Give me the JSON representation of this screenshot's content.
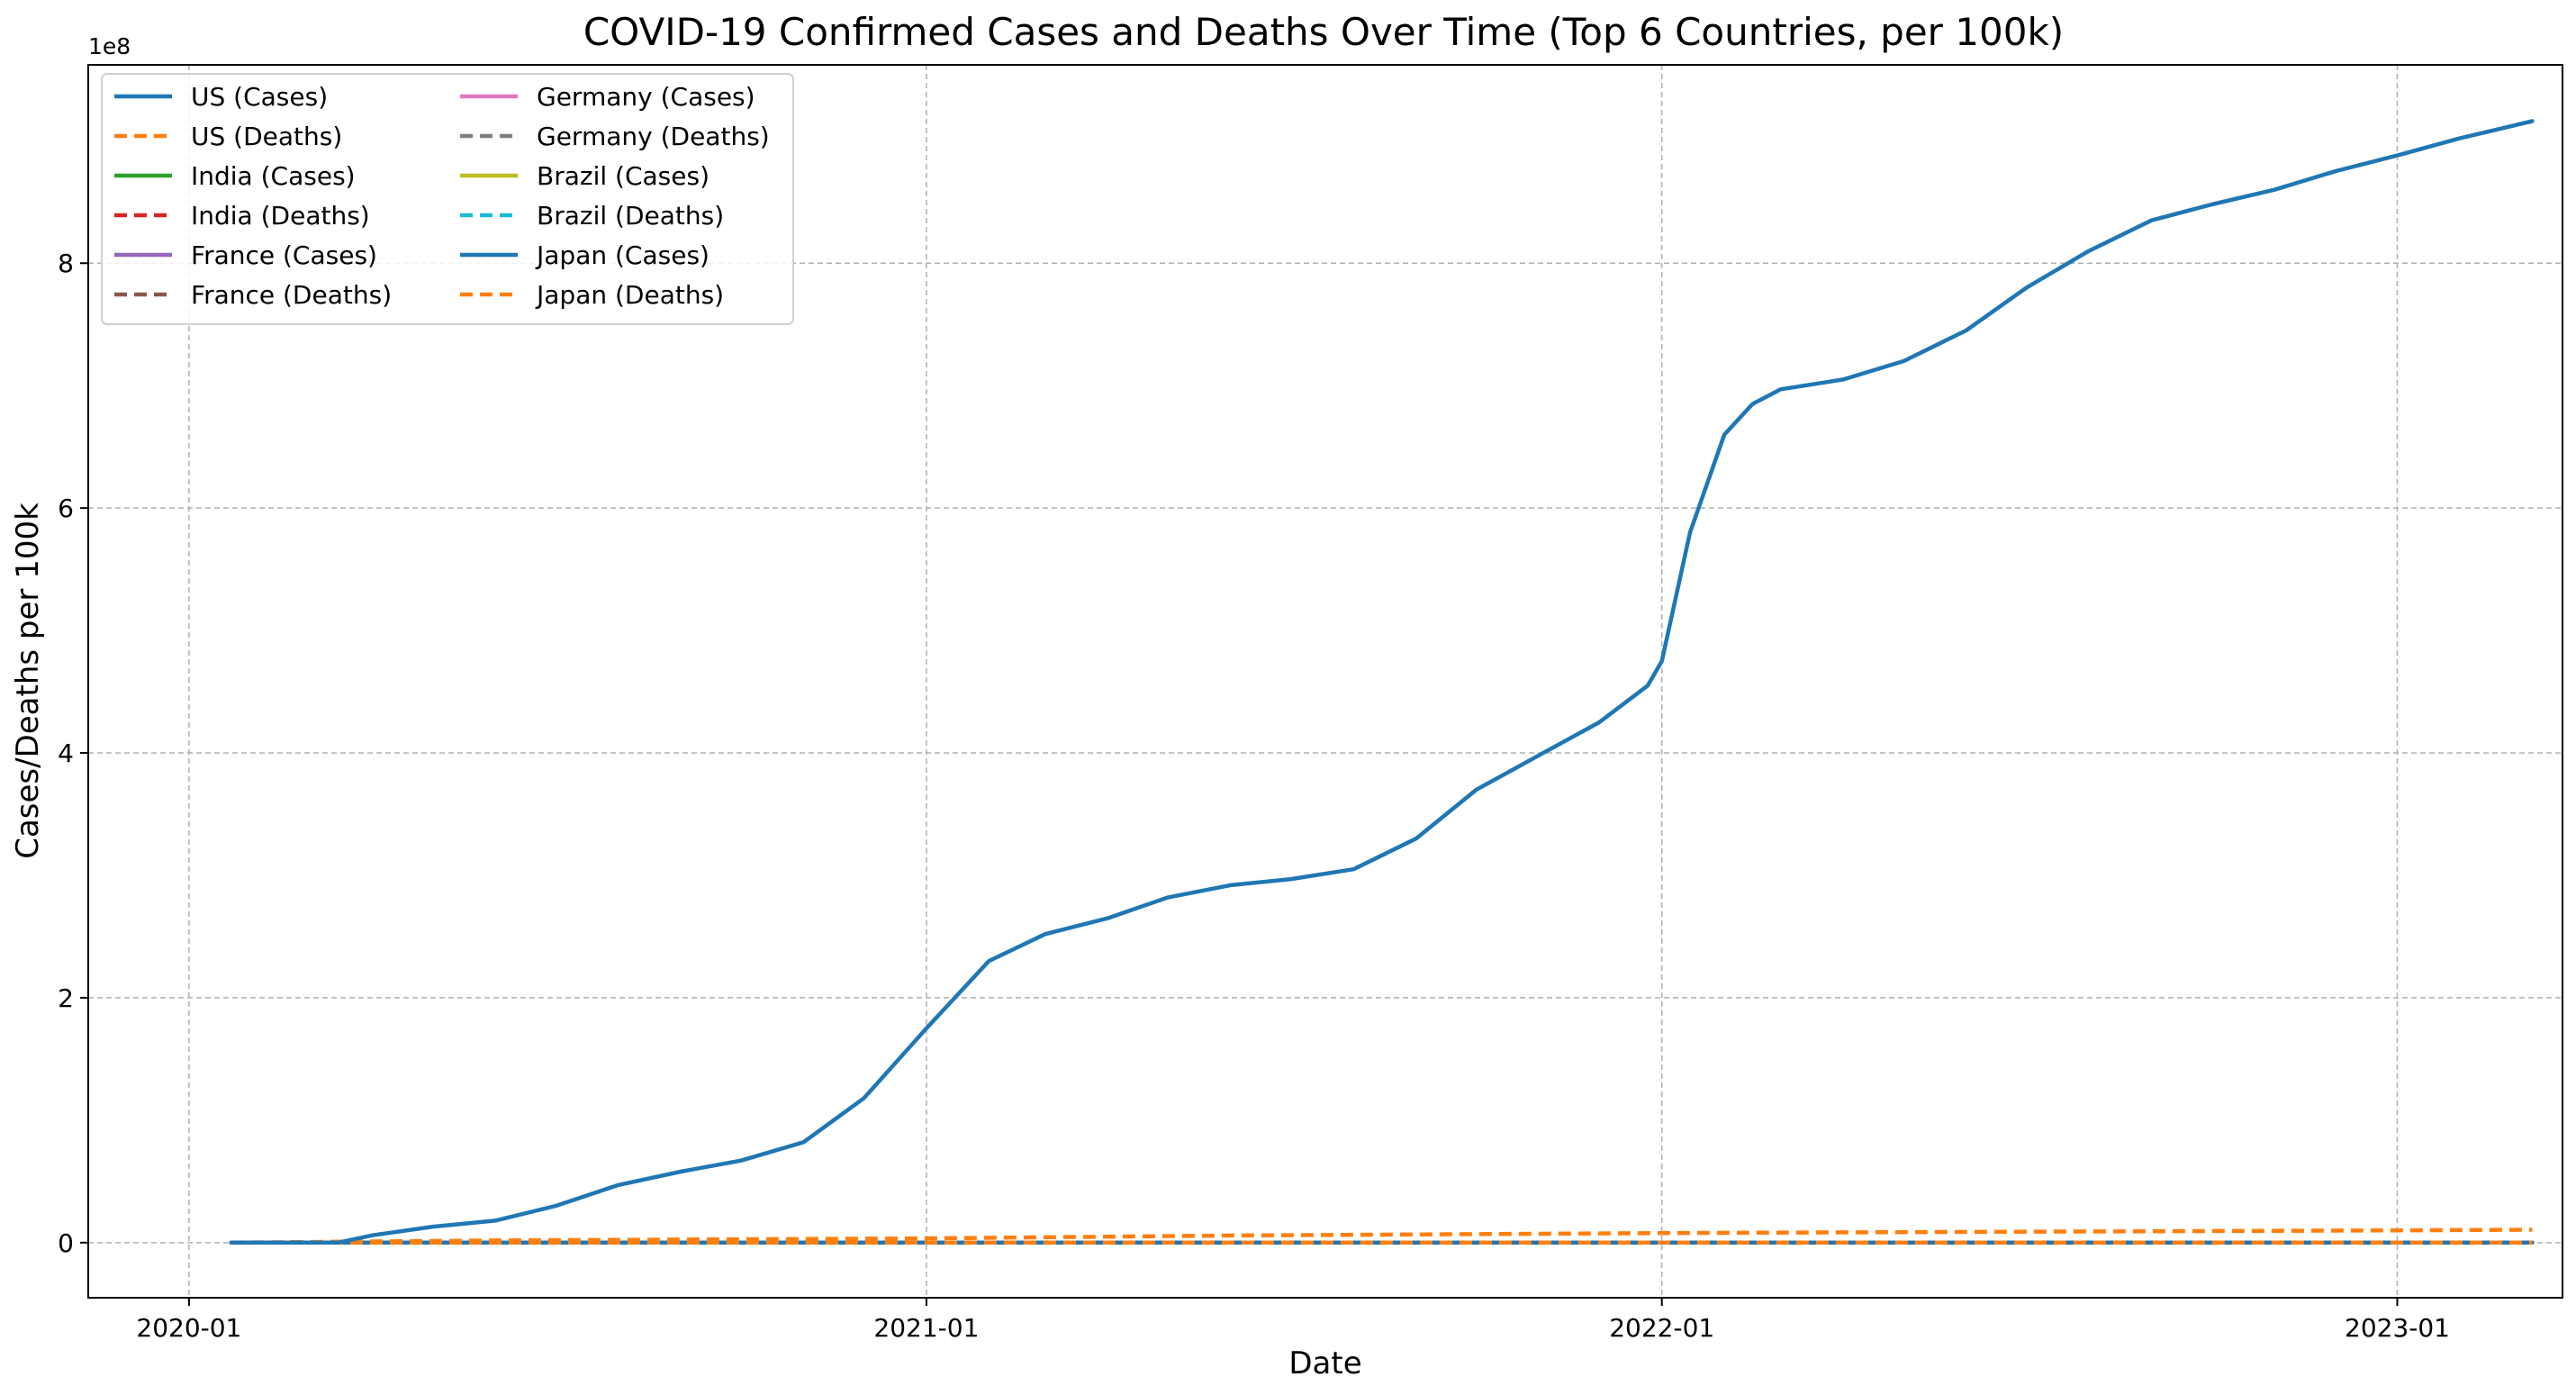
{
  "chart_data": {
    "type": "line",
    "title": "COVID-19 Confirmed Cases and Deaths Over Time (Top 6 Countries, per 100k)",
    "xlabel": "Date",
    "ylabel": "Cases/Deaths per 100k",
    "y_offset_label": "1e8",
    "xlim": [
      "2019-11-12",
      "2023-03-24"
    ],
    "ylim": [
      -0.45,
      9.62
    ],
    "y_unit": "1e8",
    "x_ticks": [
      {
        "date": "2020-01-01",
        "label": "2020-01"
      },
      {
        "date": "2021-01-01",
        "label": "2021-01"
      },
      {
        "date": "2022-01-01",
        "label": "2022-01"
      },
      {
        "date": "2023-01-01",
        "label": "2023-01"
      }
    ],
    "y_ticks": [
      {
        "value": 0,
        "label": "0"
      },
      {
        "value": 2,
        "label": "2"
      },
      {
        "value": 4,
        "label": "4"
      },
      {
        "value": 6,
        "label": "6"
      },
      {
        "value": 8,
        "label": "8"
      }
    ],
    "grid": true,
    "legend_position": "top-left",
    "legend_columns": 2,
    "series": [
      {
        "name": "US (Cases)",
        "color": "#1f77b4",
        "dash": "solid",
        "points": [
          [
            "2020-01-22",
            0
          ],
          [
            "2020-03-15",
            0
          ],
          [
            "2020-04-01",
            0.06
          ],
          [
            "2020-05-01",
            0.13
          ],
          [
            "2020-06-01",
            0.18
          ],
          [
            "2020-07-01",
            0.3
          ],
          [
            "2020-08-01",
            0.47
          ],
          [
            "2020-09-01",
            0.58
          ],
          [
            "2020-10-01",
            0.67
          ],
          [
            "2020-11-01",
            0.82
          ],
          [
            "2020-12-01",
            1.18
          ],
          [
            "2021-01-01",
            1.75
          ],
          [
            "2021-02-01",
            2.3
          ],
          [
            "2021-03-01",
            2.52
          ],
          [
            "2021-04-01",
            2.65
          ],
          [
            "2021-05-01",
            2.82
          ],
          [
            "2021-06-01",
            2.92
          ],
          [
            "2021-07-01",
            2.97
          ],
          [
            "2021-08-01",
            3.05
          ],
          [
            "2021-09-01",
            3.3
          ],
          [
            "2021-10-01",
            3.7
          ],
          [
            "2021-11-01",
            3.98
          ],
          [
            "2021-12-01",
            4.25
          ],
          [
            "2021-12-25",
            4.55
          ],
          [
            "2022-01-01",
            4.75
          ],
          [
            "2022-01-15",
            5.8
          ],
          [
            "2022-02-01",
            6.6
          ],
          [
            "2022-02-15",
            6.85
          ],
          [
            "2022-03-01",
            6.97
          ],
          [
            "2022-04-01",
            7.05
          ],
          [
            "2022-05-01",
            7.2
          ],
          [
            "2022-06-01",
            7.45
          ],
          [
            "2022-07-01",
            7.8
          ],
          [
            "2022-08-01",
            8.1
          ],
          [
            "2022-09-01",
            8.35
          ],
          [
            "2022-10-01",
            8.48
          ],
          [
            "2022-11-01",
            8.6
          ],
          [
            "2022-12-01",
            8.75
          ],
          [
            "2023-01-01",
            8.88
          ],
          [
            "2023-02-01",
            9.02
          ],
          [
            "2023-03-09",
            9.16
          ]
        ]
      },
      {
        "name": "US (Deaths)",
        "color": "#ff7f0e",
        "dash": "dashed",
        "points": [
          [
            "2020-01-22",
            0
          ],
          [
            "2020-06-01",
            0.018
          ],
          [
            "2021-01-01",
            0.035
          ],
          [
            "2021-06-01",
            0.058
          ],
          [
            "2022-01-01",
            0.078
          ],
          [
            "2022-06-01",
            0.088
          ],
          [
            "2023-01-01",
            0.1
          ],
          [
            "2023-03-09",
            0.105
          ]
        ]
      },
      {
        "name": "India (Cases)",
        "color": "#2ca02c",
        "dash": "solid",
        "points": [
          [
            "2020-01-22",
            0
          ],
          [
            "2023-03-09",
            0
          ]
        ]
      },
      {
        "name": "India (Deaths)",
        "color": "#d62728",
        "dash": "dashed",
        "points": [
          [
            "2020-01-22",
            0
          ],
          [
            "2023-03-09",
            0
          ]
        ]
      },
      {
        "name": "France (Cases)",
        "color": "#9467bd",
        "dash": "solid",
        "points": [
          [
            "2020-01-22",
            0
          ],
          [
            "2023-03-09",
            0
          ]
        ]
      },
      {
        "name": "France (Deaths)",
        "color": "#8c564b",
        "dash": "dashed",
        "points": [
          [
            "2020-01-22",
            0
          ],
          [
            "2023-03-09",
            0
          ]
        ]
      },
      {
        "name": "Germany (Cases)",
        "color": "#e377c2",
        "dash": "solid",
        "points": [
          [
            "2020-01-22",
            0
          ],
          [
            "2023-03-09",
            0
          ]
        ]
      },
      {
        "name": "Germany (Deaths)",
        "color": "#7f7f7f",
        "dash": "dashed",
        "points": [
          [
            "2020-01-22",
            0
          ],
          [
            "2023-03-09",
            0
          ]
        ]
      },
      {
        "name": "Brazil (Cases)",
        "color": "#bcbd22",
        "dash": "solid",
        "points": [
          [
            "2020-01-22",
            0
          ],
          [
            "2023-03-09",
            0
          ]
        ]
      },
      {
        "name": "Brazil (Deaths)",
        "color": "#17becf",
        "dash": "dashed",
        "points": [
          [
            "2020-01-22",
            0
          ],
          [
            "2023-03-09",
            0
          ]
        ]
      },
      {
        "name": "Japan (Cases)",
        "color": "#1f77b4",
        "dash": "solid",
        "points": [
          [
            "2020-01-22",
            0
          ],
          [
            "2023-03-09",
            0
          ]
        ]
      },
      {
        "name": "Japan (Deaths)",
        "color": "#ff7f0e",
        "dash": "dashed",
        "points": [
          [
            "2020-01-22",
            0
          ],
          [
            "2023-03-09",
            0
          ]
        ]
      }
    ]
  }
}
